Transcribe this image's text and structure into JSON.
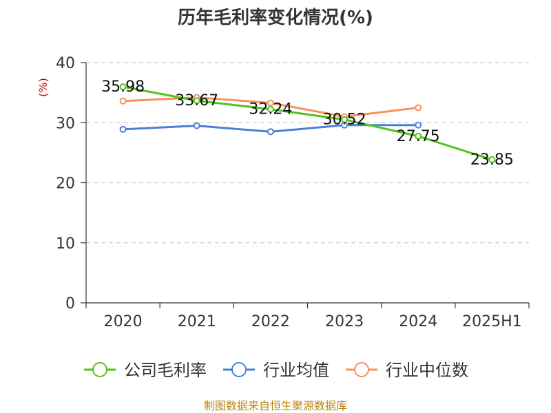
{
  "chart_data": {
    "type": "line",
    "title": "历年毛利率变化情况(%)",
    "ylabel": "(%)",
    "categories": [
      "2020",
      "2021",
      "2022",
      "2023",
      "2024",
      "2025H1"
    ],
    "ylim": [
      0,
      40
    ],
    "yticks": [
      "0",
      "10",
      "20",
      "30",
      "40"
    ],
    "grid": true,
    "legend_position": "bottom",
    "series": [
      {
        "name": "公司毛利率",
        "color": "#52c41a",
        "values": [
          35.98,
          33.67,
          32.24,
          30.52,
          27.75,
          23.85
        ],
        "labels": [
          "35.98",
          "33.67",
          "32.24",
          "30.52",
          "27.75",
          "23.85"
        ]
      },
      {
        "name": "行业均值",
        "color": "#4a7fd8",
        "values": [
          28.9,
          29.5,
          28.5,
          29.6,
          29.6,
          null
        ]
      },
      {
        "name": "行业中位数",
        "color": "#f5915a",
        "values": [
          33.6,
          34.2,
          33.3,
          31.0,
          32.5,
          null
        ]
      }
    ]
  },
  "source": "制图数据来自恒生聚源数据库"
}
